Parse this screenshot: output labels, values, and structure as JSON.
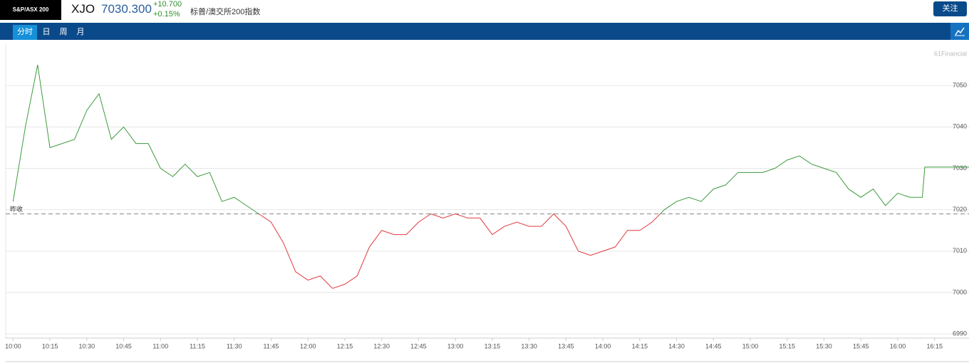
{
  "header": {
    "badge": "S&P/ASX 200",
    "symbol": "XJO",
    "price": "7030.300",
    "change": "+10.700",
    "change_pct": "+0.15%",
    "name": "标普/澳交所200指数",
    "button": "关注"
  },
  "tabs": [
    "分时",
    "日",
    "周",
    "月"
  ],
  "chart_data": {
    "type": "line",
    "watermark": "61Financial",
    "baseline": 7019,
    "baseline_label": "昨收",
    "x": [
      "10:00",
      "10:05",
      "10:10",
      "10:15",
      "10:20",
      "10:25",
      "10:30",
      "10:35",
      "10:40",
      "10:45",
      "10:50",
      "10:55",
      "11:00",
      "11:05",
      "11:10",
      "11:15",
      "11:20",
      "11:25",
      "11:30",
      "11:35",
      "11:40",
      "11:45",
      "11:50",
      "11:55",
      "12:00",
      "12:05",
      "12:10",
      "12:15",
      "12:20",
      "12:25",
      "12:30",
      "12:35",
      "12:40",
      "12:45",
      "12:50",
      "12:55",
      "13:00",
      "13:05",
      "13:10",
      "13:15",
      "13:20",
      "13:25",
      "13:30",
      "13:35",
      "13:40",
      "13:45",
      "13:50",
      "13:55",
      "14:00",
      "14:05",
      "14:10",
      "14:15",
      "14:20",
      "14:25",
      "14:30",
      "14:35",
      "14:40",
      "14:45",
      "14:50",
      "14:55",
      "15:00",
      "15:05",
      "15:10",
      "15:15",
      "15:20",
      "15:25",
      "15:30",
      "15:35",
      "15:40",
      "15:45",
      "15:50",
      "15:55",
      "16:00",
      "16:05",
      "16:10",
      "16:11",
      "16:29"
    ],
    "series": [
      {
        "name": "XJO",
        "up_color": "#3d9b3d",
        "down_color": "#e0393e",
        "values": [
          7022,
          7040,
          7055,
          7035,
          7036,
          7037,
          7044,
          7048,
          7037,
          7040,
          7036,
          7036,
          7030,
          7028,
          7031,
          7028,
          7029,
          7022,
          7023,
          7021,
          7019,
          7017,
          7012,
          7005,
          7003,
          7004,
          7001,
          7002,
          7004,
          7011,
          7015,
          7014,
          7014,
          7017,
          7019,
          7018,
          7019,
          7018,
          7018,
          7014,
          7016,
          7017,
          7016,
          7016,
          7019,
          7016,
          7010,
          7009,
          7010,
          7011,
          7015,
          7015,
          7017,
          7020,
          7022,
          7023,
          7022,
          7025,
          7026,
          7029,
          7029,
          7029,
          7030,
          7032,
          7033,
          7031,
          7030,
          7029,
          7025,
          7023,
          7025,
          7021,
          7024,
          7023,
          7023,
          7030.3,
          7030.3
        ]
      }
    ],
    "xlim": [
      "09:57",
      "16:29"
    ],
    "xticks": [
      "10:00",
      "10:15",
      "10:30",
      "10:45",
      "11:00",
      "11:15",
      "11:30",
      "11:45",
      "12:00",
      "12:15",
      "12:30",
      "12:45",
      "13:00",
      "13:15",
      "13:30",
      "13:45",
      "14:00",
      "14:15",
      "14:30",
      "14:45",
      "15:00",
      "15:15",
      "15:30",
      "15:45",
      "16:00",
      "16:15"
    ],
    "ylim": [
      6989,
      7060
    ],
    "yticks": [
      6990,
      7000,
      7010,
      7020,
      7030,
      7040,
      7050
    ],
    "grid": true
  }
}
